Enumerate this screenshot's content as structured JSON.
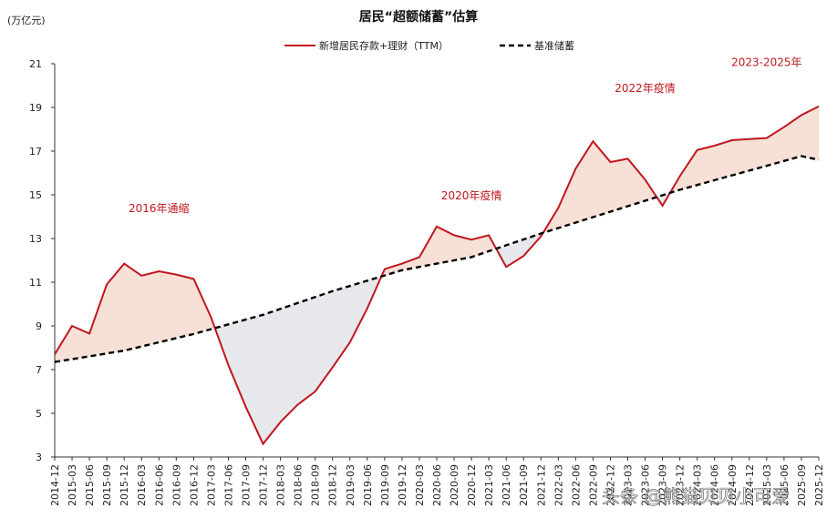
{
  "chart_data": {
    "type": "line",
    "title": "居民“超额储蓄”估算",
    "unit_label": "(万亿元)",
    "ylim": [
      3,
      21
    ],
    "yticks": [
      3,
      5,
      7,
      9,
      11,
      13,
      15,
      17,
      19,
      21
    ],
    "x": [
      "2014-12",
      "2015-03",
      "2015-06",
      "2015-09",
      "2015-12",
      "2016-03",
      "2016-06",
      "2016-09",
      "2016-12",
      "2017-03",
      "2017-06",
      "2017-09",
      "2017-12",
      "2018-03",
      "2018-06",
      "2018-09",
      "2018-12",
      "2019-03",
      "2019-06",
      "2019-09",
      "2019-12",
      "2020-03",
      "2020-06",
      "2020-09",
      "2020-12",
      "2021-03",
      "2021-06",
      "2021-09",
      "2021-12",
      "2022-03",
      "2022-06",
      "2022-09",
      "2022-12",
      "2023-03",
      "2023-06",
      "2023-09",
      "2023-12",
      "2024-03",
      "2024-06",
      "2024-09",
      "2024-12",
      "2025-03",
      "2025-06",
      "2025-09",
      "2025-12"
    ],
    "series": [
      {
        "name": "新增居民存款+理财（TTM）",
        "color": "#c0171d",
        "style": "solid",
        "values": [
          7.7,
          9.0,
          8.65,
          10.9,
          11.85,
          11.3,
          11.5,
          11.35,
          11.15,
          9.4,
          7.2,
          5.3,
          3.6,
          4.6,
          5.4,
          6.0,
          7.1,
          8.25,
          9.8,
          11.6,
          11.85,
          12.15,
          13.55,
          13.15,
          12.95,
          13.15,
          11.7,
          12.2,
          13.1,
          14.4,
          16.2,
          17.45,
          16.5,
          16.65,
          15.7,
          14.5,
          15.85,
          17.05,
          17.25,
          17.5,
          17.55,
          17.6,
          18.1,
          18.65,
          19.05
        ]
      },
      {
        "name": "基准储蓄",
        "color": "#000000",
        "style": "dashed",
        "values": [
          7.35,
          7.48,
          7.61,
          7.74,
          7.87,
          8.06,
          8.25,
          8.44,
          8.63,
          8.85,
          9.07,
          9.29,
          9.51,
          9.78,
          10.05,
          10.32,
          10.59,
          10.83,
          11.07,
          11.31,
          11.55,
          11.7,
          11.85,
          12.0,
          12.15,
          12.42,
          12.69,
          12.96,
          13.23,
          13.48,
          13.73,
          13.98,
          14.23,
          14.48,
          14.73,
          14.98,
          15.23,
          15.45,
          15.67,
          15.89,
          16.11,
          16.33,
          16.55,
          16.77,
          16.6
        ]
      }
    ],
    "annotations": [
      {
        "text": "2016年通缩",
        "x": "2016-06",
        "y": 14.2
      },
      {
        "text": "2020年疫情",
        "x": "2020-12",
        "y": 14.8
      },
      {
        "text": "2022年疫情",
        "x": "2023-06",
        "y": 19.7
      },
      {
        "text": "2023-2025年",
        "x": "2025-03",
        "y": 20.9
      }
    ],
    "fill_colors": {
      "excess": "#f7e0d6",
      "deficit": "#e6e8ec"
    },
    "legend_position": "top-center",
    "grid": false
  },
  "watermark": "头条 @熊猫贝贝小可爱"
}
